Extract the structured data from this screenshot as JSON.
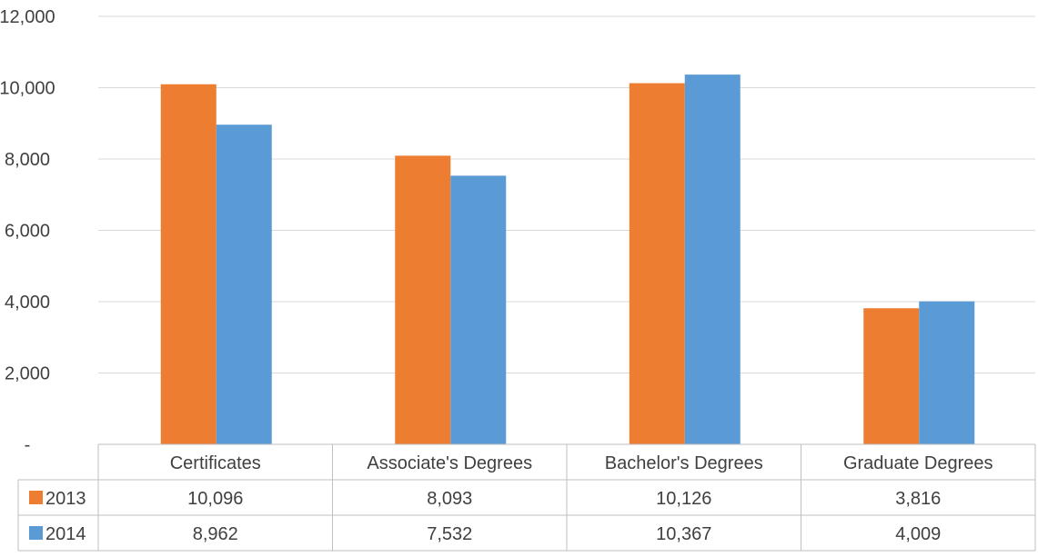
{
  "chart_data": {
    "type": "bar",
    "title": "",
    "xlabel": "",
    "ylabel": "",
    "categories": [
      "Certificates",
      "Associate's Degrees",
      "Bachelor's Degrees",
      "Graduate Degrees"
    ],
    "series": [
      {
        "name": "2013",
        "color": "#ED7D31",
        "values": [
          10096,
          8093,
          10126,
          3816
        ],
        "labels": [
          "10,096",
          "8,093",
          "10,126",
          "3,816"
        ]
      },
      {
        "name": "2014",
        "color": "#5B9BD5",
        "values": [
          8962,
          7532,
          10367,
          4009
        ],
        "labels": [
          "8,962",
          "7,532",
          "10,367",
          "4,009"
        ]
      }
    ],
    "ylim": [
      0,
      12000
    ],
    "yticks": [
      0,
      2000,
      4000,
      6000,
      8000,
      10000,
      12000
    ],
    "ytick_labels": [
      "-",
      "2,000",
      "4,000",
      "6,000",
      "8,000",
      "10,000",
      "12,000"
    ],
    "grid": true,
    "legend": "data-table",
    "data_table": true
  }
}
